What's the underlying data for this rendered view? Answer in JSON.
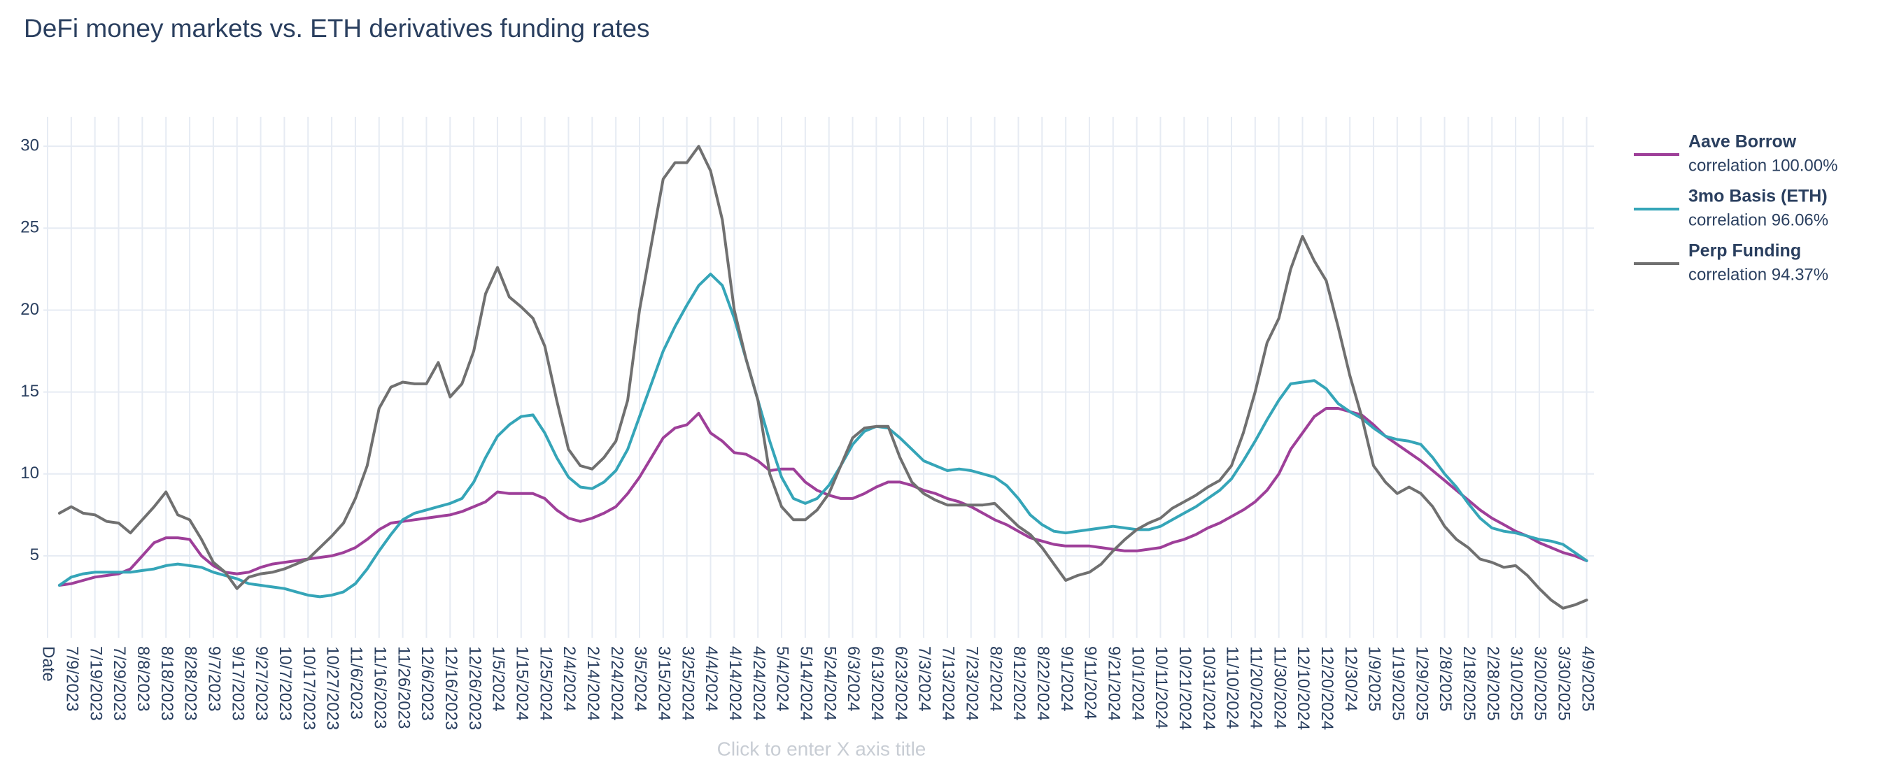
{
  "chart_data": {
    "type": "line",
    "title": "DeFi money markets vs. ETH derivatives funding rates",
    "x_label": "Click to enter X axis title",
    "categories": [
      "Date",
      null,
      "7/9/2023",
      null,
      "7/19/2023",
      null,
      "7/29/2023",
      null,
      "8/8/2023",
      null,
      "8/18/2023",
      null,
      "8/28/2023",
      null,
      "9/7/2023",
      null,
      "9/17/2023",
      null,
      "9/27/2023",
      null,
      "10/7/2023",
      null,
      "10/17/2023",
      null,
      "10/27/2023",
      null,
      "11/6/2023",
      null,
      "11/16/2023",
      null,
      "11/26/2023",
      null,
      "12/6/2023",
      null,
      "12/16/2023",
      null,
      "12/26/2023",
      null,
      "1/5/2024",
      null,
      "1/15/2024",
      null,
      "1/25/2024",
      null,
      "2/4/2024",
      null,
      "2/14/2024",
      null,
      "2/24/2024",
      null,
      "3/5/2024",
      null,
      "3/15/2024",
      null,
      "3/25/2024",
      null,
      "4/4/2024",
      null,
      "4/14/2024",
      null,
      "4/24/2024",
      null,
      "5/4/2024",
      null,
      "5/14/2024",
      null,
      "5/24/2024",
      null,
      "6/3/2024",
      null,
      "6/13/2024",
      null,
      "6/23/2024",
      null,
      "7/3/2024",
      null,
      "7/13/2024",
      null,
      "7/23/2024",
      null,
      "8/2/2024",
      null,
      "8/12/2024",
      null,
      "8/22/2024",
      null,
      "9/1/2024",
      null,
      "9/11/2024",
      null,
      "9/21/2024",
      null,
      "10/1/2024",
      null,
      "10/11/2024",
      null,
      "10/21/2024",
      null,
      "10/31/2024",
      null,
      "11/10/2024",
      null,
      "11/20/2024",
      null,
      "11/30/2024",
      null,
      "12/10/2024",
      null,
      "12/20/2024",
      null,
      "12/30/24",
      null,
      "1/9/2025",
      null,
      "1/19/2025",
      null,
      "1/29/2025",
      null,
      "2/8/2025",
      null,
      "2/18/2025",
      null,
      "2/28/2025",
      null,
      "3/10/2025",
      null,
      "3/20/2025",
      null,
      "3/30/2025",
      null,
      "4/9/2025"
    ],
    "ylim": [
      0,
      31.8
    ],
    "yticks": [
      5,
      10,
      15,
      20,
      25,
      30
    ],
    "grid": true,
    "legend_position": "right",
    "series": [
      {
        "name": "Aave Borrow",
        "description": "correlation 100.00%",
        "color": "#9e3f99",
        "values": [
          null,
          3.2,
          3.3,
          3.5,
          3.7,
          3.8,
          3.9,
          4.2,
          5.0,
          5.8,
          6.1,
          6.1,
          6.0,
          5.0,
          4.4,
          4.0,
          3.9,
          4.0,
          4.3,
          4.5,
          4.6,
          4.7,
          4.8,
          4.9,
          5.0,
          5.2,
          5.5,
          6.0,
          6.6,
          7.0,
          7.1,
          7.2,
          7.3,
          7.4,
          7.5,
          7.7,
          8.0,
          8.3,
          8.9,
          8.8,
          8.8,
          8.8,
          8.5,
          7.8,
          7.3,
          7.1,
          7.3,
          7.6,
          8.0,
          8.8,
          9.8,
          11.0,
          12.2,
          12.8,
          13.0,
          13.7,
          12.5,
          12.0,
          11.3,
          11.2,
          10.8,
          10.2,
          10.3,
          10.3,
          9.5,
          9.0,
          8.7,
          8.5,
          8.5,
          8.8,
          9.2,
          9.5,
          9.5,
          9.3,
          9.0,
          8.8,
          8.5,
          8.3,
          8.0,
          7.6,
          7.2,
          6.9,
          6.5,
          6.1,
          5.9,
          5.7,
          5.6,
          5.6,
          5.6,
          5.5,
          5.4,
          5.3,
          5.3,
          5.4,
          5.5,
          5.8,
          6.0,
          6.3,
          6.7,
          7.0,
          7.4,
          7.8,
          8.3,
          9.0,
          10.0,
          11.5,
          12.5,
          13.5,
          14.0,
          14.0,
          13.8,
          13.6,
          13.0,
          12.3,
          11.8,
          11.3,
          10.8,
          10.2,
          9.6,
          9.0,
          8.4,
          7.8,
          7.3,
          6.9,
          6.5,
          6.2,
          5.8,
          5.5,
          5.2,
          5.0,
          4.7
        ]
      },
      {
        "name": "3mo Basis (ETH)",
        "description": "correlation 96.06%",
        "color": "#35a5b8",
        "values": [
          null,
          3.2,
          3.7,
          3.9,
          4.0,
          4.0,
          4.0,
          4.0,
          4.1,
          4.2,
          4.4,
          4.5,
          4.4,
          4.3,
          4.0,
          3.8,
          3.6,
          3.3,
          3.2,
          3.1,
          3.0,
          2.8,
          2.6,
          2.5,
          2.6,
          2.8,
          3.3,
          4.2,
          5.3,
          6.3,
          7.2,
          7.6,
          7.8,
          8.0,
          8.2,
          8.5,
          9.5,
          11.0,
          12.3,
          13.0,
          13.5,
          13.6,
          12.5,
          11.0,
          9.8,
          9.2,
          9.1,
          9.5,
          10.2,
          11.5,
          13.5,
          15.5,
          17.5,
          19.0,
          20.3,
          21.5,
          22.2,
          21.5,
          19.5,
          17.0,
          14.5,
          12.0,
          9.8,
          8.5,
          8.2,
          8.5,
          9.3,
          10.5,
          11.8,
          12.6,
          12.9,
          12.8,
          12.2,
          11.5,
          10.8,
          10.5,
          10.2,
          10.3,
          10.2,
          10.0,
          9.8,
          9.3,
          8.5,
          7.5,
          6.9,
          6.5,
          6.4,
          6.5,
          6.6,
          6.7,
          6.8,
          6.7,
          6.6,
          6.6,
          6.8,
          7.2,
          7.6,
          8.0,
          8.5,
          9.0,
          9.7,
          10.8,
          12.0,
          13.3,
          14.5,
          15.5,
          15.6,
          15.7,
          15.2,
          14.3,
          13.8,
          13.4,
          12.8,
          12.3,
          12.1,
          12.0,
          11.8,
          11.0,
          10.0,
          9.2,
          8.2,
          7.3,
          6.7,
          6.5,
          6.4,
          6.2,
          6.0,
          5.9,
          5.7,
          5.2,
          4.7
        ]
      },
      {
        "name": "Perp Funding",
        "description": "correlation 94.37%",
        "color": "#707070",
        "values": [
          null,
          7.6,
          8.0,
          7.6,
          7.5,
          7.1,
          7.0,
          6.4,
          7.2,
          8.0,
          8.9,
          7.5,
          7.2,
          6.0,
          4.6,
          4.0,
          3.0,
          3.7,
          3.9,
          4.0,
          4.2,
          4.5,
          4.8,
          5.5,
          6.2,
          7.0,
          8.5,
          10.5,
          14.0,
          15.3,
          15.6,
          15.5,
          15.5,
          16.8,
          14.7,
          15.5,
          17.5,
          21.0,
          22.6,
          20.8,
          20.2,
          19.5,
          17.8,
          14.5,
          11.5,
          10.5,
          10.3,
          11.0,
          12.0,
          14.5,
          20.0,
          24.0,
          28.0,
          29.0,
          29.0,
          30.0,
          28.5,
          25.5,
          20.0,
          17.0,
          14.5,
          10.0,
          8.0,
          7.2,
          7.2,
          7.8,
          8.8,
          10.5,
          12.2,
          12.8,
          12.9,
          12.9,
          11.0,
          9.5,
          8.8,
          8.4,
          8.1,
          8.1,
          8.1,
          8.1,
          8.2,
          7.5,
          6.8,
          6.3,
          5.5,
          4.5,
          3.5,
          3.8,
          4.0,
          4.5,
          5.3,
          6.0,
          6.6,
          7.0,
          7.3,
          7.9,
          8.3,
          8.7,
          9.2,
          9.6,
          10.5,
          12.5,
          15.0,
          18.0,
          19.5,
          22.5,
          24.5,
          23.0,
          21.8,
          19.0,
          16.0,
          13.5,
          10.5,
          9.5,
          8.8,
          9.2,
          8.8,
          8.0,
          6.8,
          6.0,
          5.5,
          4.8,
          4.6,
          4.3,
          4.4,
          3.8,
          3.0,
          2.3,
          1.8,
          2.0,
          2.3
        ]
      }
    ]
  }
}
